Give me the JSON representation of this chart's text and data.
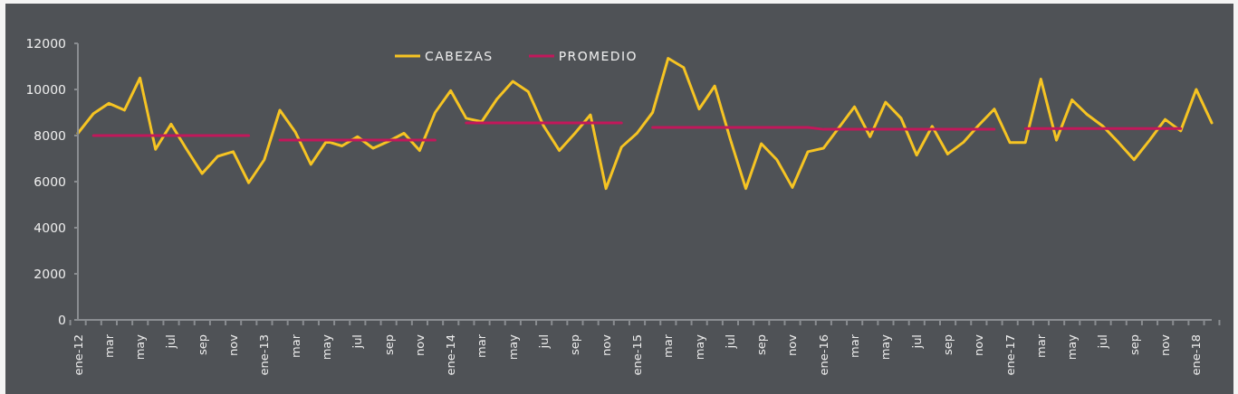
{
  "chart_data": {
    "type": "line",
    "categories": [
      "ene-12",
      null,
      "mar",
      null,
      "may",
      null,
      "jul",
      null,
      "sep",
      null,
      "nov",
      null,
      "ene-13",
      null,
      "mar",
      null,
      "may",
      null,
      "jul",
      null,
      "sep",
      null,
      "nov",
      null,
      "ene-14",
      null,
      "mar",
      null,
      "may",
      null,
      "jul",
      null,
      "sep",
      null,
      "nov",
      null,
      "ene-15",
      null,
      "mar",
      null,
      "may",
      null,
      "jul",
      null,
      "sep",
      null,
      "nov",
      null,
      "ene-16",
      null,
      "mar",
      null,
      "may",
      null,
      "jul",
      null,
      "sep",
      null,
      "nov",
      null,
      "ene-17",
      null,
      "mar",
      null,
      "may",
      null,
      "jul",
      null,
      "sep",
      null,
      "nov",
      null,
      "ene-18",
      null
    ],
    "series": [
      {
        "name": "CABEZAS",
        "color": "#f6c423",
        "values": [
          8100,
          8950,
          9400,
          9100,
          10500,
          7400,
          8500,
          7400,
          6350,
          7100,
          7300,
          5950,
          6950,
          9100,
          8150,
          6750,
          7750,
          7550,
          7950,
          7450,
          7750,
          8100,
          7350,
          9000,
          9950,
          8750,
          8600,
          9600,
          10350,
          9900,
          8400,
          7350,
          8100,
          8900,
          5700,
          7500,
          8100,
          9000,
          11350,
          10950,
          9150,
          10150,
          7850,
          5700,
          7650,
          6950,
          5750,
          7300,
          7450,
          8350,
          9250,
          7950,
          9450,
          8750,
          7150,
          8400,
          7200,
          7700,
          8450,
          9150,
          7700,
          7700,
          10450,
          7800,
          9550,
          8900,
          8400,
          7700,
          6950,
          7800,
          8700,
          8200,
          10000,
          8550
        ]
      },
      {
        "name": "PROMEDIO",
        "color": "#c2185b",
        "values": [
          null,
          8000,
          8000,
          8000,
          8000,
          8000,
          8000,
          8000,
          8000,
          8000,
          8000,
          8000,
          null,
          7800,
          7800,
          7800,
          7800,
          7800,
          7800,
          7800,
          7800,
          7800,
          7800,
          7800,
          null,
          8550,
          8550,
          8550,
          8550,
          8550,
          8550,
          8550,
          8550,
          8550,
          8550,
          8550,
          null,
          8350,
          8350,
          8350,
          8350,
          8350,
          8350,
          8350,
          8350,
          8350,
          8350,
          8350,
          8270,
          8270,
          8270,
          8270,
          8270,
          8270,
          8270,
          8270,
          8270,
          8270,
          8270,
          8270,
          null,
          8300,
          8300,
          8300,
          8300,
          8300,
          8300,
          8300,
          8300,
          8300,
          8300,
          8300,
          null,
          null
        ]
      }
    ],
    "ylim": [
      0,
      12000
    ],
    "yticks": [
      0,
      2000,
      4000,
      6000,
      8000,
      10000,
      12000
    ],
    "legend": "top"
  }
}
